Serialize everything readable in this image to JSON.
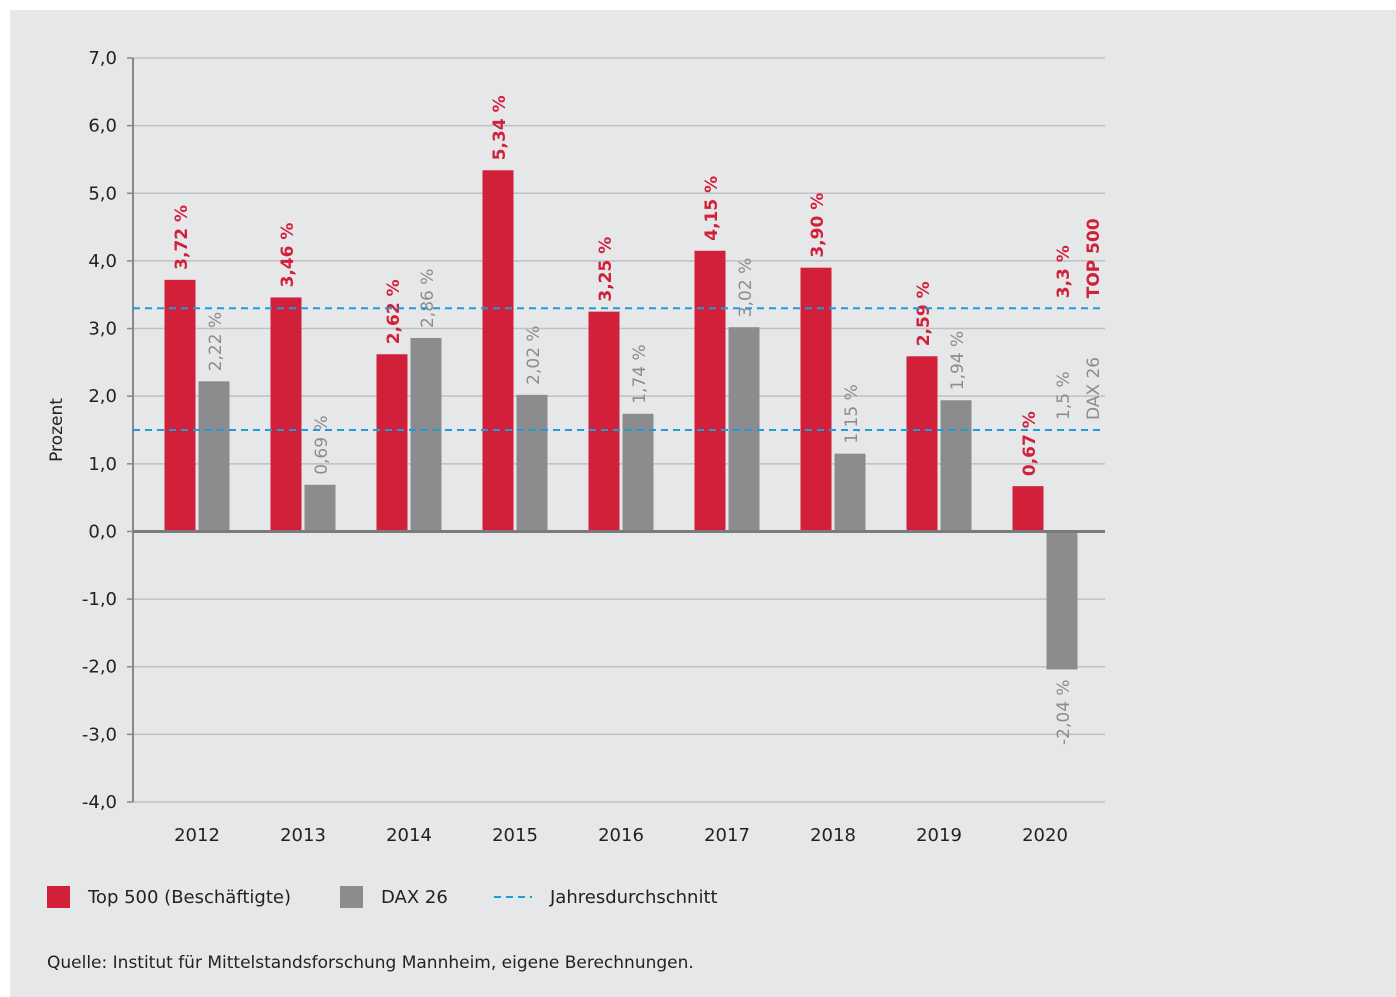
{
  "chart_data": {
    "type": "bar",
    "ylabel": "Prozent",
    "categories": [
      "2012",
      "2013",
      "2014",
      "2015",
      "2016",
      "2017",
      "2018",
      "2019",
      "2020"
    ],
    "series": [
      {
        "name": "Top 500 (Beschäftigte)",
        "color": "#d3203a",
        "values": [
          3.72,
          3.46,
          2.62,
          5.34,
          3.25,
          4.15,
          3.9,
          2.59,
          0.67
        ],
        "value_labels": [
          "3,72 %",
          "3,46 %",
          "2,62 %",
          "5,34 %",
          "3,25 %",
          "4,15 %",
          "3,90 %",
          "2,59 %",
          "0,67 %"
        ]
      },
      {
        "name": "DAX 26",
        "color": "#8c8c8e",
        "values": [
          2.22,
          0.69,
          2.86,
          2.02,
          1.74,
          3.02,
          1.15,
          1.94,
          -2.04
        ],
        "value_labels": [
          "2,22 %",
          "0,69 %",
          "2,86 %",
          "2,02 %",
          "1,74 %",
          "3,02 %",
          "1,15 %",
          "1,94 %",
          "-2,04 %"
        ]
      }
    ],
    "reference_lines": [
      {
        "value": 3.3,
        "label": "3,3 %",
        "name": "TOP 500",
        "color": "#d3203a"
      },
      {
        "value": 1.5,
        "label": "1,5 %",
        "name": "DAX 26",
        "color": "#8c8c8e"
      }
    ],
    "reference_line_legend": "Jahresdurchschnitt",
    "reference_line_color": "#1a9ed9",
    "ylim": [
      -4,
      7
    ],
    "yticks": [
      {
        "value": -4,
        "label": "-4,0"
      },
      {
        "value": -3,
        "label": "-3,0"
      },
      {
        "value": -2,
        "label": "-2,0"
      },
      {
        "value": -1,
        "label": "-1,0"
      },
      {
        "value": 0,
        "label": "0,0"
      },
      {
        "value": 1,
        "label": "1,0"
      },
      {
        "value": 2,
        "label": "2,0"
      },
      {
        "value": 3,
        "label": "3,0"
      },
      {
        "value": 4,
        "label": "4,0"
      },
      {
        "value": 5,
        "label": "5,0"
      },
      {
        "value": 6,
        "label": "6,0"
      },
      {
        "value": 7,
        "label": "7,0"
      }
    ],
    "grid": true,
    "source": "Quelle: Institut für Mittelstandsforschung Mannheim, eigene Berechnungen."
  }
}
